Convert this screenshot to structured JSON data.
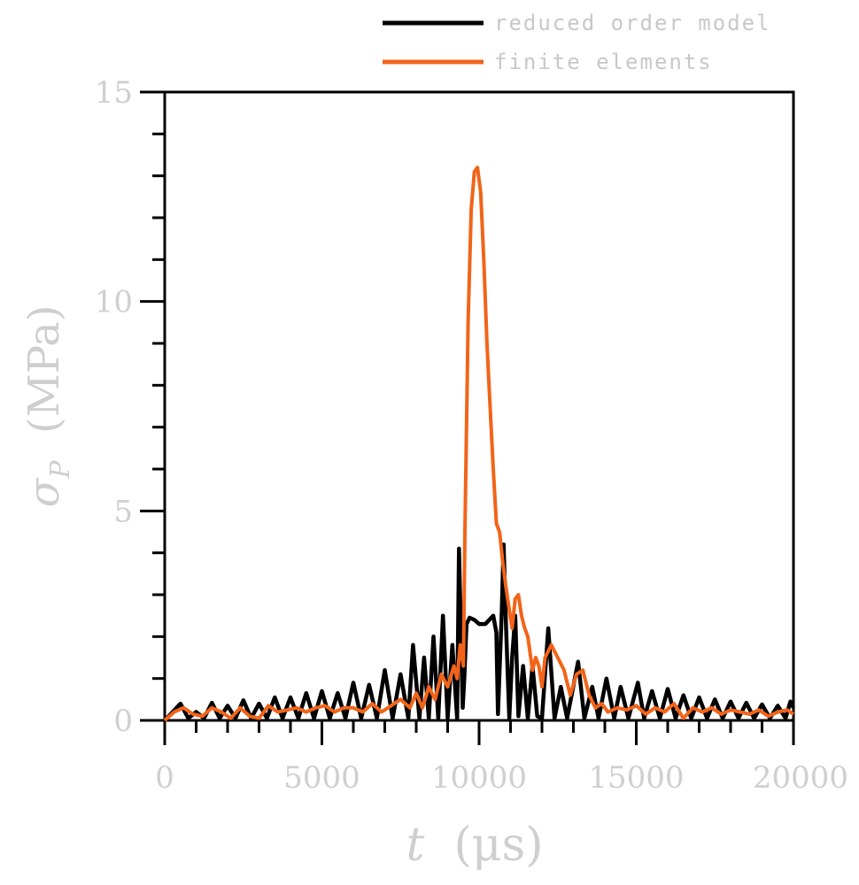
{
  "chart_data": {
    "type": "line",
    "xlabel": {
      "symbol": "t",
      "unit": "(μs)"
    },
    "ylabel": {
      "symbol": "σ",
      "subscript": "P",
      "unit": "(MPa)"
    },
    "xlim": [
      0,
      20000
    ],
    "ylim": [
      0,
      15
    ],
    "x_ticks": [
      0,
      5000,
      10000,
      15000,
      20000
    ],
    "x_tick_labels": [
      "0",
      "5000",
      "10000",
      "15000",
      "20000"
    ],
    "y_ticks": [
      0,
      5,
      10,
      15
    ],
    "y_tick_labels": [
      "0",
      "5",
      "10",
      "15"
    ],
    "grid": false,
    "legend_position": "top-right",
    "series": [
      {
        "name": "reduced order model",
        "color": "#000000",
        "points": [
          [
            0,
            0
          ],
          [
            250,
            0.2
          ],
          [
            500,
            0.4
          ],
          [
            750,
            0.05
          ],
          [
            1000,
            0.2
          ],
          [
            1250,
            0.05
          ],
          [
            1500,
            0.42
          ],
          [
            1750,
            0.05
          ],
          [
            2000,
            0.35
          ],
          [
            2250,
            0.05
          ],
          [
            2500,
            0.48
          ],
          [
            2750,
            0.05
          ],
          [
            3000,
            0.4
          ],
          [
            3250,
            0.05
          ],
          [
            3500,
            0.55
          ],
          [
            3750,
            0.05
          ],
          [
            4000,
            0.55
          ],
          [
            4250,
            0.05
          ],
          [
            4500,
            0.65
          ],
          [
            4750,
            0.05
          ],
          [
            5000,
            0.7
          ],
          [
            5250,
            0.05
          ],
          [
            5500,
            0.65
          ],
          [
            5750,
            0.05
          ],
          [
            6000,
            0.9
          ],
          [
            6250,
            0.05
          ],
          [
            6500,
            0.85
          ],
          [
            6750,
            0.05
          ],
          [
            7000,
            1.2
          ],
          [
            7250,
            0.05
          ],
          [
            7500,
            1.1
          ],
          [
            7750,
            0.05
          ],
          [
            7900,
            1.8
          ],
          [
            8100,
            0.05
          ],
          [
            8250,
            1.5
          ],
          [
            8400,
            0.05
          ],
          [
            8550,
            2.0
          ],
          [
            8700,
            0.05
          ],
          [
            8850,
            2.5
          ],
          [
            9000,
            0.05
          ],
          [
            9150,
            1.8
          ],
          [
            9300,
            0.05
          ],
          [
            9360,
            4.1
          ],
          [
            9480,
            0.3
          ],
          [
            9530,
            1.0
          ],
          [
            9600,
            2.3
          ],
          [
            9700,
            2.45
          ],
          [
            9850,
            2.4
          ],
          [
            10000,
            2.3
          ],
          [
            10200,
            2.3
          ],
          [
            10450,
            2.5
          ],
          [
            10550,
            2.1
          ],
          [
            10600,
            0.15
          ],
          [
            10720,
            2.6
          ],
          [
            10780,
            4.2
          ],
          [
            10860,
            2.2
          ],
          [
            10960,
            0.05
          ],
          [
            11050,
            1.5
          ],
          [
            11150,
            2.5
          ],
          [
            11250,
            0.1
          ],
          [
            11400,
            1.3
          ],
          [
            11550,
            0.05
          ],
          [
            11700,
            1.3
          ],
          [
            11850,
            0.1
          ],
          [
            12000,
            0.05
          ],
          [
            12200,
            2.2
          ],
          [
            12400,
            0.05
          ],
          [
            12600,
            0.8
          ],
          [
            12800,
            0.05
          ],
          [
            13150,
            1.4
          ],
          [
            13350,
            0.05
          ],
          [
            13600,
            0.8
          ],
          [
            13800,
            0.05
          ],
          [
            14050,
            1.0
          ],
          [
            14300,
            0.05
          ],
          [
            14500,
            0.8
          ],
          [
            14750,
            0.05
          ],
          [
            15050,
            0.9
          ],
          [
            15250,
            0.05
          ],
          [
            15500,
            0.7
          ],
          [
            15750,
            0.05
          ],
          [
            16000,
            0.75
          ],
          [
            16250,
            0.05
          ],
          [
            16500,
            0.6
          ],
          [
            16750,
            0.05
          ],
          [
            17000,
            0.55
          ],
          [
            17250,
            0.05
          ],
          [
            17500,
            0.5
          ],
          [
            17750,
            0.05
          ],
          [
            18000,
            0.45
          ],
          [
            18250,
            0.05
          ],
          [
            18500,
            0.42
          ],
          [
            18750,
            0.05
          ],
          [
            19000,
            0.38
          ],
          [
            19250,
            0.05
          ],
          [
            19500,
            0.35
          ],
          [
            19750,
            0.05
          ],
          [
            19900,
            0.45
          ],
          [
            20000,
            0.3
          ]
        ]
      },
      {
        "name": "finite elements",
        "color": "#f26419",
        "points": [
          [
            0,
            0
          ],
          [
            300,
            0.2
          ],
          [
            600,
            0.3
          ],
          [
            900,
            0.15
          ],
          [
            1200,
            0.1
          ],
          [
            1500,
            0.3
          ],
          [
            1800,
            0.2
          ],
          [
            2100,
            0.05
          ],
          [
            2400,
            0.3
          ],
          [
            2700,
            0.1
          ],
          [
            3000,
            0.05
          ],
          [
            3300,
            0.35
          ],
          [
            3600,
            0.2
          ],
          [
            3900,
            0.25
          ],
          [
            4200,
            0.3
          ],
          [
            4500,
            0.2
          ],
          [
            4800,
            0.3
          ],
          [
            5100,
            0.35
          ],
          [
            5400,
            0.2
          ],
          [
            5700,
            0.3
          ],
          [
            6000,
            0.3
          ],
          [
            6300,
            0.2
          ],
          [
            6600,
            0.4
          ],
          [
            6900,
            0.2
          ],
          [
            7200,
            0.35
          ],
          [
            7500,
            0.5
          ],
          [
            7800,
            0.3
          ],
          [
            8000,
            0.65
          ],
          [
            8200,
            0.3
          ],
          [
            8400,
            0.8
          ],
          [
            8600,
            0.5
          ],
          [
            8800,
            1.1
          ],
          [
            9000,
            0.8
          ],
          [
            9200,
            1.3
          ],
          [
            9300,
            1.0
          ],
          [
            9400,
            1.8
          ],
          [
            9500,
            1.3
          ],
          [
            9550,
            4.5
          ],
          [
            9650,
            9.5
          ],
          [
            9750,
            12.2
          ],
          [
            9850,
            13.1
          ],
          [
            9950,
            13.2
          ],
          [
            10050,
            12.6
          ],
          [
            10150,
            11.0
          ],
          [
            10250,
            9.0
          ],
          [
            10350,
            7.5
          ],
          [
            10450,
            6.0
          ],
          [
            10550,
            4.7
          ],
          [
            10650,
            4.5
          ],
          [
            10750,
            3.8
          ],
          [
            10850,
            3.2
          ],
          [
            10950,
            2.7
          ],
          [
            11050,
            2.2
          ],
          [
            11150,
            2.9
          ],
          [
            11250,
            3.0
          ],
          [
            11350,
            2.5
          ],
          [
            11450,
            2.2
          ],
          [
            11550,
            2.0
          ],
          [
            11700,
            1.2
          ],
          [
            11800,
            1.5
          ],
          [
            11900,
            1.3
          ],
          [
            12000,
            0.8
          ],
          [
            12100,
            1.5
          ],
          [
            12300,
            1.8
          ],
          [
            12500,
            1.5
          ],
          [
            12700,
            1.2
          ],
          [
            12900,
            0.6
          ],
          [
            13100,
            1.1
          ],
          [
            13300,
            1.2
          ],
          [
            13500,
            0.6
          ],
          [
            13700,
            0.3
          ],
          [
            13900,
            0.4
          ],
          [
            14100,
            0.2
          ],
          [
            14400,
            0.3
          ],
          [
            14700,
            0.25
          ],
          [
            15000,
            0.35
          ],
          [
            15300,
            0.15
          ],
          [
            15600,
            0.3
          ],
          [
            15900,
            0.2
          ],
          [
            16200,
            0.4
          ],
          [
            16500,
            0.05
          ],
          [
            16800,
            0.3
          ],
          [
            17100,
            0.2
          ],
          [
            17400,
            0.3
          ],
          [
            17700,
            0.15
          ],
          [
            18000,
            0.25
          ],
          [
            18300,
            0.2
          ],
          [
            18600,
            0.15
          ],
          [
            18900,
            0.25
          ],
          [
            19200,
            0.1
          ],
          [
            19500,
            0.2
          ],
          [
            19800,
            0.25
          ],
          [
            20000,
            0.15
          ]
        ]
      }
    ]
  }
}
